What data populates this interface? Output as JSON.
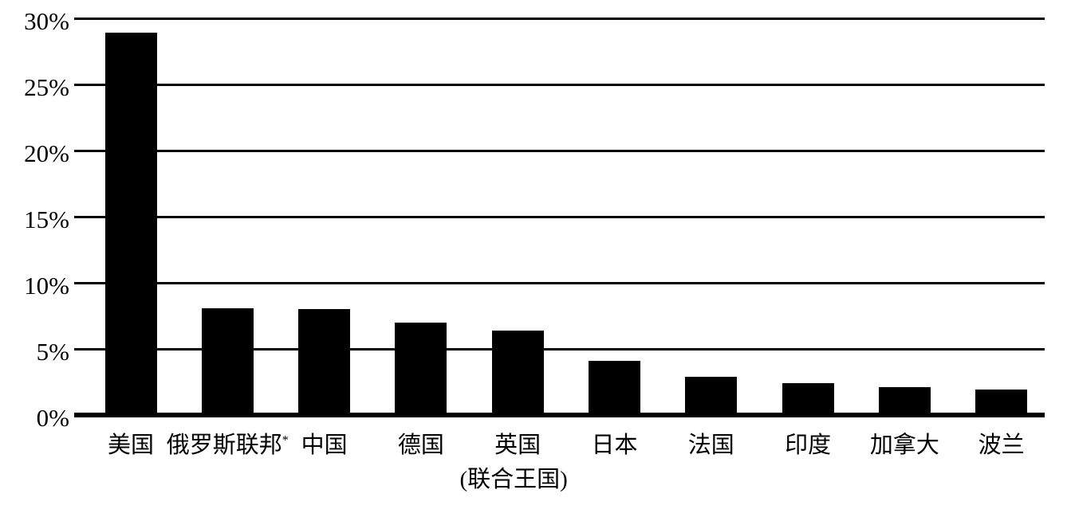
{
  "chart_data": {
    "type": "bar",
    "title": "",
    "xlabel": "",
    "ylabel": "",
    "categories": [
      "美国",
      "俄罗斯联邦",
      "中国",
      "德国",
      "英国",
      "日本",
      "法国",
      "印度",
      "加拿大",
      "波兰"
    ],
    "category_markers": [
      "",
      "*",
      "",
      "",
      "",
      "",
      "",
      "",
      "",
      ""
    ],
    "category_sublabels": [
      "",
      "",
      "",
      "",
      "(联合王国)",
      "",
      "",
      "",
      "",
      ""
    ],
    "values": [
      28.9,
      8.1,
      8.0,
      7.0,
      6.4,
      4.1,
      2.9,
      2.4,
      2.1,
      1.9
    ],
    "value_unit": "%",
    "ylim": [
      0,
      30
    ],
    "ytick_step": 5,
    "ytick_labels": [
      "0%",
      "5%",
      "10%",
      "15%",
      "20%",
      "25%",
      "30%"
    ],
    "grid": true,
    "legend": null,
    "bar_color": "#000000",
    "gridline_color": "#000000",
    "background_color": "#ffffff"
  }
}
